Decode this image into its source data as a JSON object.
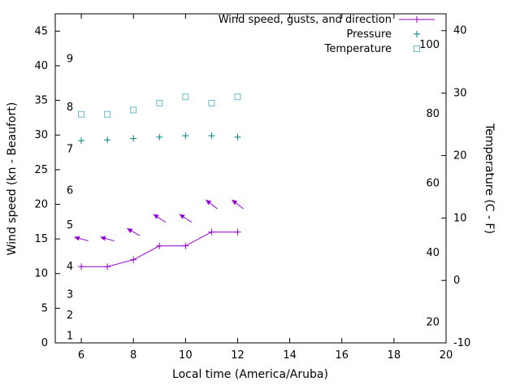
{
  "chart_data": {
    "type": "line",
    "title": "",
    "xlabel": "Local time (America/Aruba)",
    "ylabel_left": "Wind speed (kn - Beaufort)",
    "ylabel_right": "Temperature (C - F)",
    "xlim": [
      5,
      20
    ],
    "x_ticks": [
      6,
      8,
      10,
      12,
      14,
      16,
      18,
      20
    ],
    "left_axis": {
      "lim": [
        0,
        47.5
      ],
      "ticks": [
        0,
        5,
        10,
        15,
        20,
        25,
        30,
        35,
        40,
        45
      ]
    },
    "right_axis": {
      "lim": [
        -10,
        42.7
      ],
      "ticks": [
        -10,
        0,
        10,
        20,
        30,
        40
      ]
    },
    "grid": false,
    "legend_position": "top-right-inside",
    "beaufort_scale_labels": [
      {
        "label": "1",
        "kn": 1
      },
      {
        "label": "2",
        "kn": 4
      },
      {
        "label": "3",
        "kn": 7
      },
      {
        "label": "4",
        "kn": 11
      },
      {
        "label": "5",
        "kn": 17
      },
      {
        "label": "6",
        "kn": 22
      },
      {
        "label": "7",
        "kn": 28
      },
      {
        "label": "8",
        "kn": 34
      },
      {
        "label": "9",
        "kn": 41
      }
    ],
    "fahrenheit_scale_labels": [
      {
        "label": "20",
        "f": 20
      },
      {
        "label": "40",
        "f": 40
      },
      {
        "label": "60",
        "f": 60
      },
      {
        "label": "80",
        "f": 80
      },
      {
        "label": "100",
        "f": 100
      }
    ],
    "x": [
      6,
      7,
      8,
      9,
      10,
      11,
      12
    ],
    "series": [
      {
        "name": "Wind speed",
        "axis": "left",
        "style": "line-plus",
        "color": "#9400d3",
        "values": [
          11,
          11,
          12,
          14,
          14,
          16,
          16
        ]
      },
      {
        "name": "Wind gusts and direction",
        "axis": "left",
        "style": "arrow",
        "color": "#9400d3",
        "values": [
          15,
          15,
          16,
          18,
          18,
          20,
          20
        ],
        "arrow_angles_deg": [
          165,
          165,
          150,
          147,
          147,
          142,
          142
        ]
      },
      {
        "name": "Pressure",
        "axis": "left",
        "style": "plus",
        "color": "#008080",
        "values": [
          29.2,
          29.3,
          29.5,
          29.7,
          29.9,
          29.9,
          29.7
        ]
      },
      {
        "name": "Temperature",
        "axis": "right",
        "style": "square",
        "color": "#66b8cc",
        "values": [
          26.6,
          26.6,
          27.3,
          28.4,
          29.4,
          28.4,
          29.4
        ]
      }
    ],
    "legend": [
      {
        "label": "Wind speed, gusts, and direction",
        "style": "line-plus",
        "series": 0
      },
      {
        "label": "Pressure",
        "style": "plus",
        "series": 2
      },
      {
        "label": "Temperature",
        "style": "square",
        "series": 3
      }
    ]
  }
}
